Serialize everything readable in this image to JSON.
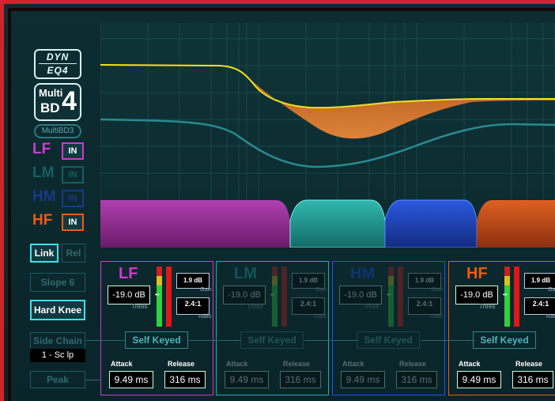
{
  "logo": {
    "brand_top": "DYN",
    "brand_bottom": "EQ4",
    "product_line1": "Multi",
    "product_line2": "BD",
    "product_num": "4"
  },
  "sidebar": {
    "multibd3_label": "MultiBD3",
    "bands": [
      {
        "name": "LF",
        "in_label": "IN",
        "color": "#d03ad0",
        "active": true
      },
      {
        "name": "LM",
        "in_label": "IN",
        "color": "#1fb0b0",
        "active": false
      },
      {
        "name": "HM",
        "in_label": "IN",
        "color": "#2050ff",
        "active": false
      },
      {
        "name": "HF",
        "in_label": "IN",
        "color": "#f05a10",
        "active": true
      }
    ],
    "link_label": "Link",
    "rel_label": "Rel",
    "slope_label": "Slope 6",
    "hard_knee_label": "Hard Knee",
    "side_chain_label": "Side Chain",
    "side_chain_value": "1 - Sc lp",
    "peak_label": "Peak"
  },
  "bands": [
    {
      "name": "LF",
      "color": "#d03ad0",
      "threshold": "-19.0 dB",
      "threshold_caption": "Thres",
      "gain": "1.9 dB",
      "gain_caption": "Gain",
      "ratio": "2.4:1",
      "ratio_caption": "Ratio",
      "self_keyed": "Self Keyed",
      "attack_label": "Attack",
      "attack": "9.49 ms",
      "release_label": "Release",
      "release": "316 ms",
      "active": true
    },
    {
      "name": "LM",
      "color": "#1fb0b0",
      "threshold": "-19.0 dB",
      "threshold_caption": "Thres",
      "gain": "1.9 dB",
      "gain_caption": "Gain",
      "ratio": "2.4:1",
      "ratio_caption": "Ratio",
      "self_keyed": "Self Keyed",
      "attack_label": "Attack",
      "attack": "9.49 ms",
      "release_label": "Release",
      "release": "316 ms",
      "active": false
    },
    {
      "name": "HM",
      "color": "#2050ff",
      "threshold": "-19.0 dB",
      "threshold_caption": "Thres",
      "gain": "1.9 dB",
      "gain_caption": "Gain",
      "ratio": "2.4:1",
      "ratio_caption": "Ratio",
      "self_keyed": "Self Keyed",
      "attack_label": "Attack",
      "attack": "9.49 ms",
      "release_label": "Release",
      "release": "316 ms",
      "active": false
    },
    {
      "name": "HF",
      "color": "#f05a10",
      "threshold": "-19.0 dB",
      "threshold_caption": "Thres",
      "gain": "1.9 dB",
      "gain_caption": "Gain",
      "ratio": "2.4:1",
      "ratio_caption": "Ratio",
      "self_keyed": "Self Keyed",
      "attack_label": "Attack",
      "attack": "9.49 ms",
      "release_label": "Release",
      "release": "316 ms",
      "active": true
    }
  ],
  "colors": {
    "frame_red": "#d0242c",
    "curve_yellow": "#f0e020",
    "gr_fill": "#e06820",
    "accent_cyan": "#40e0e8"
  }
}
